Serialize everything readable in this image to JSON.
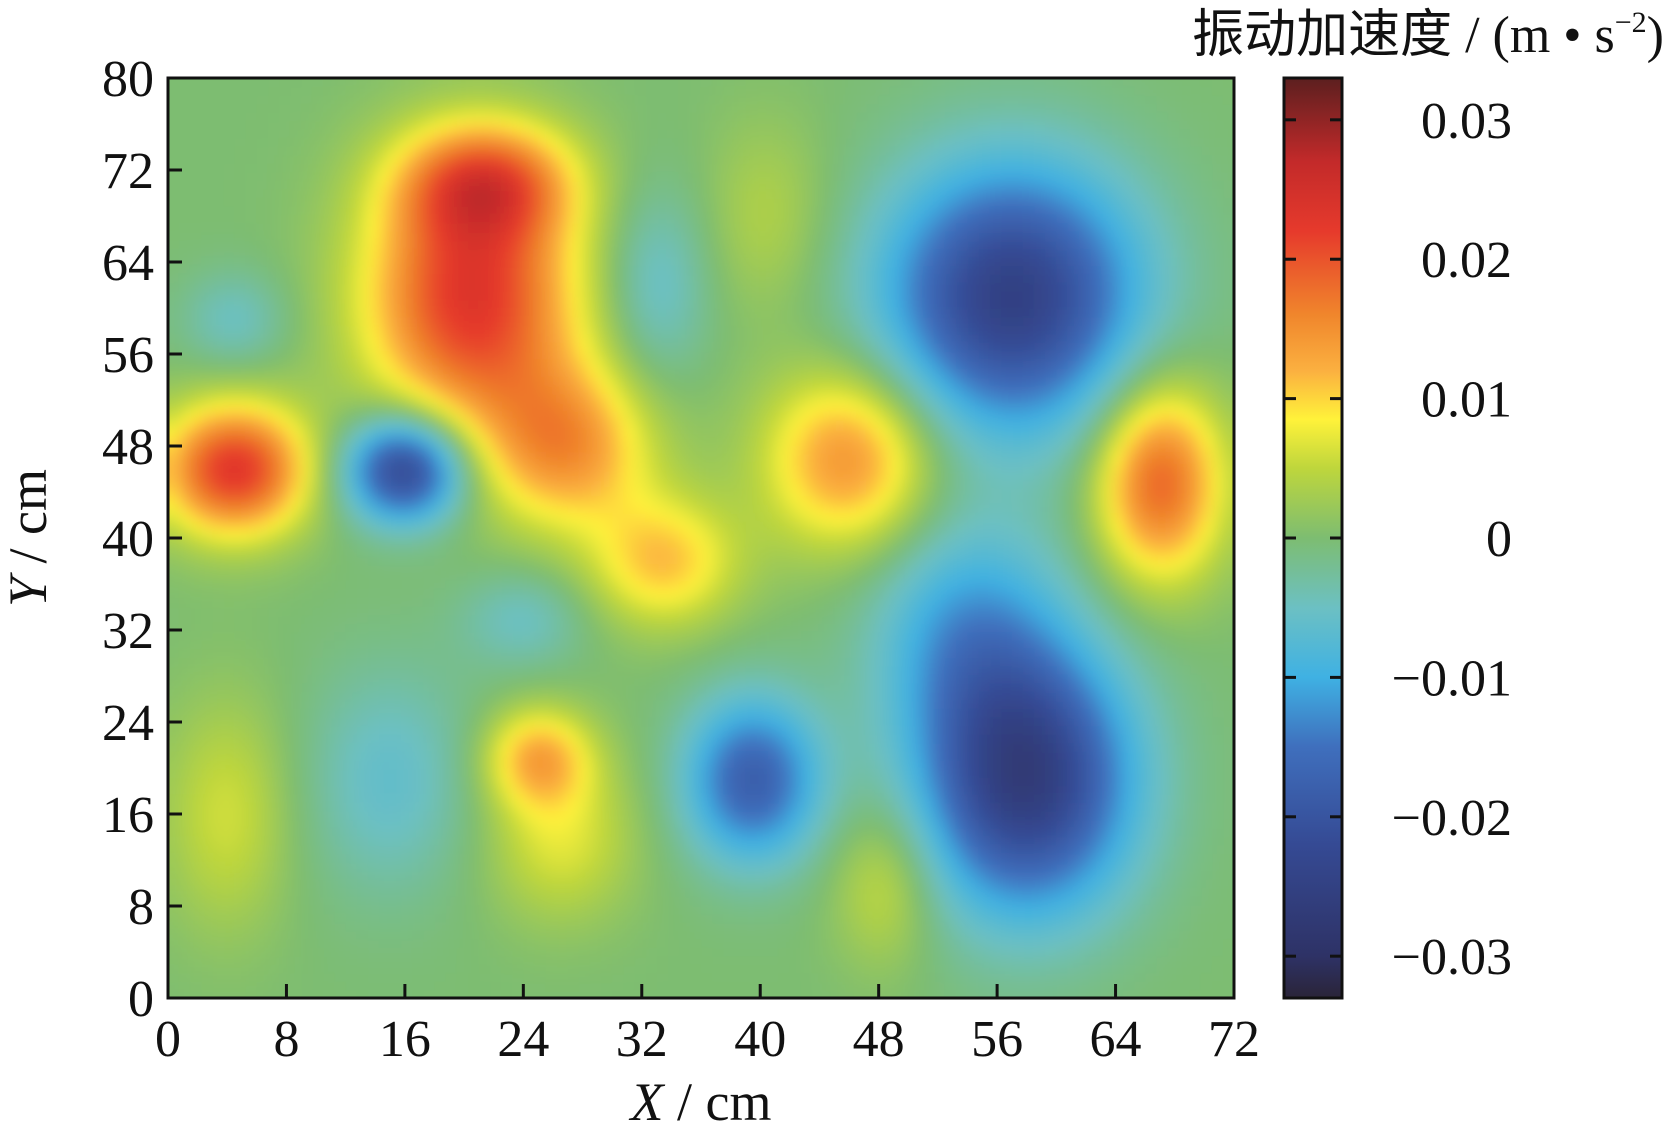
{
  "chart_data": {
    "type": "heatmap",
    "title": "",
    "xlabel": {
      "var": "X",
      "unit": " / cm"
    },
    "ylabel": {
      "var": "Y",
      "unit": " / cm"
    },
    "xlim": [
      0,
      72
    ],
    "ylim": [
      0,
      80
    ],
    "x_ticks": [
      0,
      8,
      16,
      24,
      32,
      40,
      48,
      56,
      64,
      72
    ],
    "y_ticks": [
      0,
      8,
      16,
      24,
      32,
      40,
      48,
      56,
      64,
      72,
      80
    ],
    "x_tick_labels": [
      "0",
      "8",
      "16",
      "24",
      "32",
      "40",
      "48",
      "56",
      "64",
      "72"
    ],
    "y_tick_labels": [
      "0",
      "8",
      "16",
      "24",
      "32",
      "40",
      "48",
      "56",
      "64",
      "72",
      "80"
    ],
    "colorbar": {
      "label_prefix": "振动加速度 / (m • s",
      "label_exponent": "−2",
      "label_suffix": ")",
      "range": [
        -0.033,
        0.033
      ],
      "ticks": [
        0.03,
        0.02,
        0.01,
        0,
        -0.01,
        -0.02,
        -0.03
      ],
      "tick_labels": [
        "0.03",
        "0.02",
        "0.01",
        "0",
        "−0.01",
        "−0.02",
        "−0.03"
      ],
      "colormap": [
        [
          -0.033,
          "#2a2438"
        ],
        [
          -0.03,
          "#2e3266"
        ],
        [
          -0.022,
          "#354a94"
        ],
        [
          -0.015,
          "#3f6fbd"
        ],
        [
          -0.01,
          "#3fb1e3"
        ],
        [
          -0.005,
          "#6cc0c3"
        ],
        [
          0.0,
          "#7dbd71"
        ],
        [
          0.005,
          "#bed63c"
        ],
        [
          0.0085,
          "#fff23a"
        ],
        [
          0.012,
          "#fbb040"
        ],
        [
          0.016,
          "#f0862c"
        ],
        [
          0.022,
          "#e63a2c"
        ],
        [
          0.027,
          "#c32a2a"
        ],
        [
          0.033,
          "#5c1f1f"
        ]
      ]
    },
    "features": [
      {
        "x": 4.5,
        "y": 46,
        "amplitude": 0.023,
        "sx": 3.5,
        "sy": 4.0
      },
      {
        "x": 20.5,
        "y": 61,
        "amplitude": 0.023,
        "sx": 5.0,
        "sy": 8.0
      },
      {
        "x": 21.5,
        "y": 71,
        "amplitude": 0.016,
        "sx": 4.0,
        "sy": 3.5
      },
      {
        "x": 27,
        "y": 48,
        "amplitude": 0.014,
        "sx": 4.0,
        "sy": 5.0
      },
      {
        "x": 33.5,
        "y": 38,
        "amplitude": 0.011,
        "sx": 3.5,
        "sy": 4.0
      },
      {
        "x": 46,
        "y": 47,
        "amplitude": 0.015,
        "sx": 4.0,
        "sy": 5.5
      },
      {
        "x": 67,
        "y": 45,
        "amplitude": 0.019,
        "sx": 3.0,
        "sy": 6.0
      },
      {
        "x": 25,
        "y": 21,
        "amplitude": 0.012,
        "sx": 2.5,
        "sy": 3.0
      },
      {
        "x": 26.5,
        "y": 14,
        "amplitude": 0.007,
        "sx": 3.5,
        "sy": 5.0
      },
      {
        "x": 4,
        "y": 16,
        "amplitude": 0.006,
        "sx": 3.0,
        "sy": 7.0
      },
      {
        "x": 48.5,
        "y": 10,
        "amplitude": 0.006,
        "sx": 2.5,
        "sy": 5.0
      },
      {
        "x": 40.5,
        "y": 68,
        "amplitude": 0.004,
        "sx": 3.0,
        "sy": 6.0
      },
      {
        "x": 16,
        "y": 46,
        "amplitude": -0.024,
        "sx": 2.8,
        "sy": 3.2
      },
      {
        "x": 57,
        "y": 61,
        "amplitude": -0.025,
        "sx": 6.0,
        "sy": 8.0
      },
      {
        "x": 58,
        "y": 19,
        "amplitude": -0.026,
        "sx": 5.0,
        "sy": 8.0
      },
      {
        "x": 39.5,
        "y": 19,
        "amplitude": -0.018,
        "sx": 3.2,
        "sy": 5.0
      },
      {
        "x": 54,
        "y": 32,
        "amplitude": -0.01,
        "sx": 4.5,
        "sy": 7.0
      },
      {
        "x": 33,
        "y": 62,
        "amplitude": -0.006,
        "sx": 2.5,
        "sy": 6.0
      },
      {
        "x": 15,
        "y": 19,
        "amplitude": -0.006,
        "sx": 4.0,
        "sy": 7.0
      },
      {
        "x": 4.5,
        "y": 59,
        "amplitude": -0.005,
        "sx": 2.5,
        "sy": 3.0
      },
      {
        "x": 24,
        "y": 33,
        "amplitude": -0.005,
        "sx": 3.0,
        "sy": 3.0
      }
    ]
  }
}
